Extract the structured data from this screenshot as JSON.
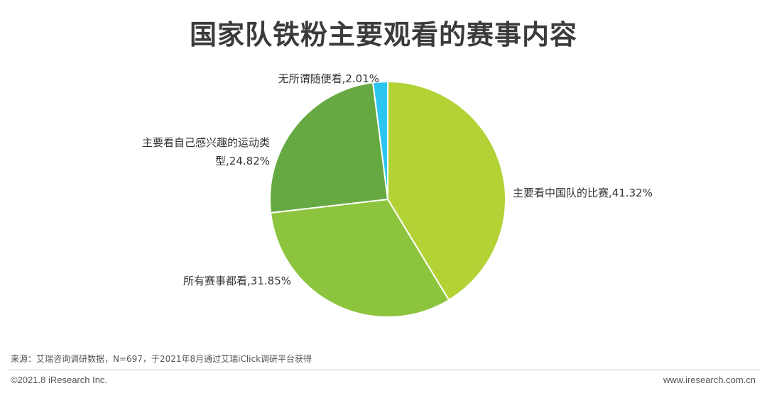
{
  "title": "国家队铁粉主要观看的赛事内容",
  "chart_data": {
    "type": "pie",
    "title": "国家队铁粉主要观看的赛事内容",
    "slices": [
      {
        "label": "主要看中国队的比赛",
        "value": 41.32,
        "value_text": "41.32%",
        "color": "#b2d235"
      },
      {
        "label": "所有赛事都看",
        "value": 31.85,
        "value_text": "31.85%",
        "color": "#8cc43e"
      },
      {
        "label": "主要看自己感兴趣的运动类型",
        "value": 24.82,
        "value_text": "24.82%",
        "color": "#66a943"
      },
      {
        "label": "无所谓随便看",
        "value": 2.01,
        "value_text": "2.01%",
        "color": "#2cc5ef"
      }
    ],
    "label_lines": [
      [
        "主要看中国队的比赛,41.32%"
      ],
      [
        "所有赛事都看,31.85%"
      ],
      [
        "主要看自己感兴趣的运动类",
        "型,24.82%"
      ],
      [
        "无所谓随便看,2.01%"
      ]
    ],
    "start": "12 o'clock",
    "direction": "clockwise"
  },
  "footer": {
    "source": "来源：艾瑞咨询调研数据，N=697，于2021年8月通过艾瑞iClick调研平台获得",
    "copyright": "©2021.8 iResearch Inc.",
    "website": "www.iresearch.com.cn"
  }
}
